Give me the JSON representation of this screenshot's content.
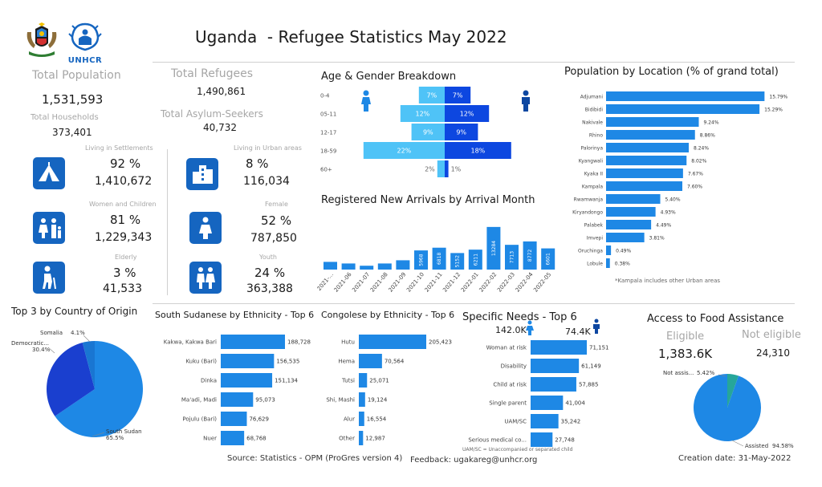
{
  "header": {
    "title": "Uganda  - Refugee Statistics May 2022",
    "unhcr_wordmark": "UNHCR"
  },
  "kpis": {
    "total_population_label": "Total Population",
    "total_population": "1,531,593",
    "total_households_label": "Total Households",
    "total_households": "373,401",
    "total_refugees_label": "Total Refugees",
    "total_refugees": "1,490,861",
    "total_asylum_label": "Total Asylum-Seekers",
    "total_asylum": "40,732"
  },
  "groups": [
    {
      "label": "Living in Settlements",
      "pct": "92 %",
      "value": "1,410,672",
      "icon": "tent-icon"
    },
    {
      "label": "Living in Urban areas",
      "pct": "8 %",
      "value": "116,034",
      "icon": "buildings-icon"
    },
    {
      "label": "Women and Children",
      "pct": "81 %",
      "value": "1,229,343",
      "icon": "family-icon"
    },
    {
      "label": "Female",
      "pct": "52 %",
      "value": "787,850",
      "icon": "woman-icon"
    },
    {
      "label": "Elderly",
      "pct": "3 %",
      "value": "41,533",
      "icon": "elderly-icon"
    },
    {
      "label": "Youth",
      "pct": "24 %",
      "value": "363,388",
      "icon": "youth-icon"
    }
  ],
  "colors": {
    "primary": "#1565c0",
    "bar_blue": "#1e88e5",
    "light_blue": "#4fc3f7",
    "male_blue": "#0d47e0",
    "teal": "#26a69a",
    "grey_text": "#a6a6a6"
  },
  "chart_data": [
    {
      "type": "bar",
      "id": "age_gender",
      "title": "Age & Gender Breakdown",
      "categories": [
        "0-4",
        "05-11",
        "12-17",
        "18-59",
        "60+"
      ],
      "series": [
        {
          "name": "Female",
          "values": [
            7,
            12,
            9,
            22,
            2
          ]
        },
        {
          "name": "Male",
          "values": [
            7,
            12,
            9,
            18,
            1
          ]
        }
      ],
      "labels_female": [
        "7%",
        "12%",
        "9%",
        "22%",
        "2%"
      ],
      "labels_male": [
        "7%",
        "12%",
        "9%",
        "18%",
        "1%"
      ]
    },
    {
      "type": "bar",
      "id": "new_arrivals",
      "title": "Registered New Arrivals by Arrival Month",
      "categories": [
        "2021-...",
        "2021-06",
        "2021-07",
        "2021-08",
        "2021-09",
        "2021-10",
        "2021-11",
        "2021-12",
        "2022-01",
        "2022-02",
        "2022-03",
        "2022-04",
        "2022-05"
      ],
      "values": [
        2400,
        1900,
        1200,
        1900,
        2900,
        5968,
        6818,
        5152,
        6211,
        13284,
        7713,
        8772,
        6601
      ],
      "data_labels": [
        "",
        "",
        "",
        "",
        "",
        "5968",
        "6818",
        "5152",
        "6211",
        "13284",
        "7713",
        "8772",
        "6601"
      ]
    },
    {
      "type": "bar",
      "id": "location",
      "title": "Population by Location (% of grand total)",
      "categories": [
        "Adjumani",
        "Bidibidi",
        "Nakivale",
        "Rhino",
        "Palorinya",
        "Kyangwali",
        "Kyaka II",
        "Kampala",
        "Rwamwanja",
        "Kiryandongo",
        "Palabek",
        "Imvepi",
        "Oruchinga",
        "Lobule"
      ],
      "values": [
        15.79,
        15.29,
        9.24,
        8.86,
        8.24,
        8.02,
        7.67,
        7.6,
        5.4,
        4.93,
        4.49,
        3.81,
        0.49,
        0.38
      ],
      "data_labels": [
        "15.79%",
        "15.29%",
        "9.24%",
        "8.86%",
        "8.24%",
        "8.02%",
        "7.67%",
        "7.60%",
        "5.40%",
        "4.93%",
        "4.49%",
        "3.81%",
        "0.49%",
        "0.38%"
      ],
      "note": "*Kampala includes other Urban areas"
    },
    {
      "type": "pie",
      "id": "origin",
      "title": "Top 3 by Country of Origin",
      "labels": [
        "South Sudan",
        "Democratic...",
        "Somalia"
      ],
      "values": [
        65.5,
        30.4,
        4.1
      ],
      "data_labels": [
        "65.5%",
        "30.4%",
        "4.1%"
      ]
    },
    {
      "type": "bar",
      "id": "ss_ethnicity",
      "title": "South Sudanese by Ethnicity - Top 6",
      "categories": [
        "Kakwa, Kakwa Bari",
        "Kuku (Bari)",
        "Dinka",
        "Ma'adi, Madi",
        "Pojulu (Bari)",
        "Nuer"
      ],
      "values": [
        188728,
        156535,
        151134,
        95073,
        76629,
        68768
      ],
      "data_labels": [
        "188,728",
        "156,535",
        "151,134",
        "95,073",
        "76,629",
        "68,768"
      ]
    },
    {
      "type": "bar",
      "id": "cd_ethnicity",
      "title": "Congolese by Ethnicity - Top 6",
      "categories": [
        "Hutu",
        "Hema",
        "Tutsi",
        "Shi, Mashi",
        "Alur",
        "Other"
      ],
      "values": [
        205423,
        70564,
        25071,
        19124,
        16554,
        12987
      ],
      "data_labels": [
        "205,423",
        "70,564",
        "25,071",
        "19,124",
        "16,554",
        "12,987"
      ]
    },
    {
      "type": "bar",
      "id": "specific_needs",
      "title": "Specific Needs - Top 6",
      "female_total": "142.0K",
      "male_total": "74.4K",
      "categories": [
        "Woman at risk",
        "Disability",
        "Child at risk",
        "Single parent",
        "UAM/SC",
        "Serious medical co..."
      ],
      "values": [
        71151,
        61149,
        57885,
        41004,
        35242,
        27748
      ],
      "data_labels": [
        "71,151",
        "61,149",
        "57,885",
        "41,004",
        "35,242",
        "27,748"
      ],
      "note": "UAM/SC = Unaccompanied or separated child"
    },
    {
      "type": "pie",
      "id": "food",
      "title": "Access to Food Assistance",
      "eligible_label": "Eligible",
      "eligible_value": "1,383.6K",
      "not_eligible_label": "Not eligible",
      "not_eligible_value": "24,310",
      "labels": [
        "Assisted",
        "Not assis..."
      ],
      "values": [
        94.58,
        5.42
      ],
      "data_labels": [
        "94.58%",
        "5.42%"
      ]
    }
  ],
  "footer": {
    "source": "Source: Statistics - OPM (ProGres version 4)",
    "feedback": "Feedback: ugakareg@unhcr.org",
    "creation": "Creation date: 31-May-2022"
  }
}
